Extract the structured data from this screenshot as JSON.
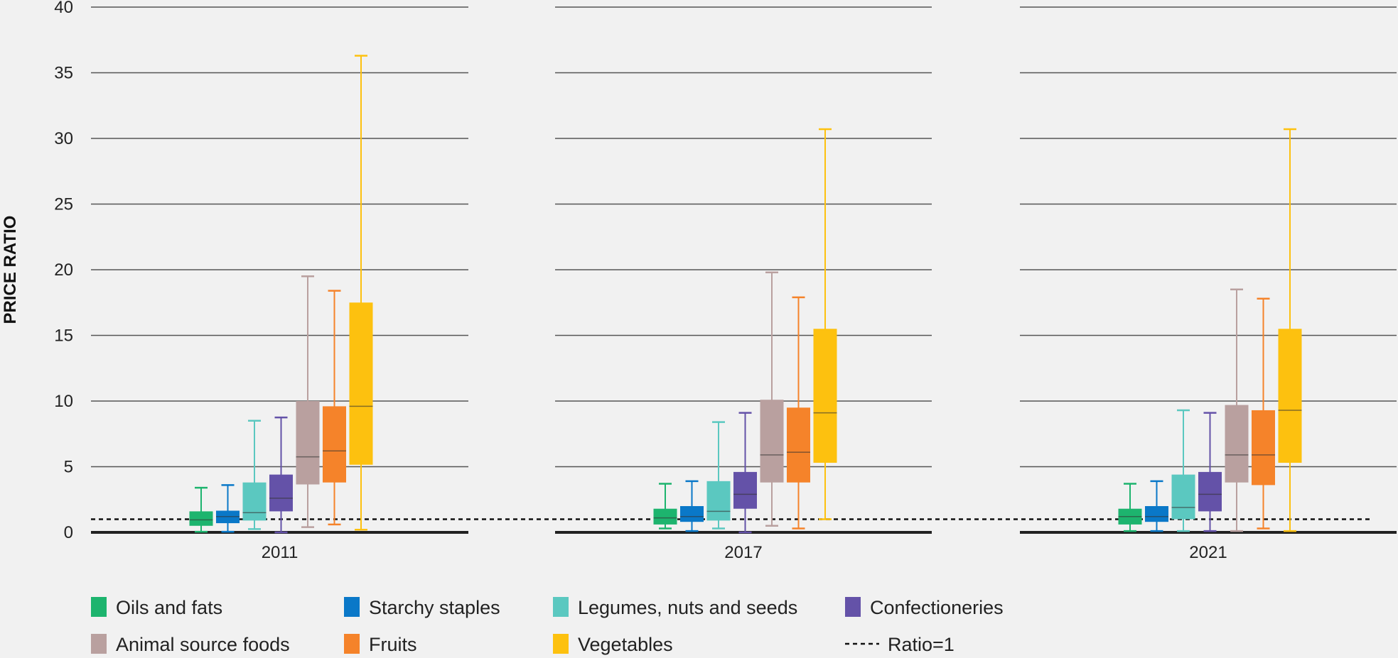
{
  "chart_data": {
    "type": "boxplot",
    "ylabel": "PRICE RATIO",
    "ylim": [
      0,
      40
    ],
    "yticks": [
      0,
      5,
      10,
      15,
      20,
      25,
      30,
      35,
      40
    ],
    "grid": true,
    "reference_line": {
      "value": 1,
      "label": "Ratio=1",
      "style": "dashed"
    },
    "categories": [
      "Oils and fats",
      "Starchy staples",
      "Legumes, nuts and seeds",
      "Confectioneries",
      "Animal source foods",
      "Fruits",
      "Vegetables"
    ],
    "colors": [
      "#1db46e",
      "#0a78c8",
      "#5bc8c0",
      "#6452a8",
      "#b9a09f",
      "#f5832a",
      "#fdc10f"
    ],
    "legend_placement": "bottom",
    "panels": [
      {
        "label": "2011",
        "boxes": [
          {
            "min": 0.05,
            "q1": 0.5,
            "median": 0.95,
            "q3": 1.6,
            "max": 3.4
          },
          {
            "min": 0.05,
            "q1": 0.7,
            "median": 1.2,
            "q3": 1.65,
            "max": 3.6
          },
          {
            "min": 0.25,
            "q1": 0.9,
            "median": 1.5,
            "q3": 3.8,
            "max": 8.5
          },
          {
            "min": 0.0,
            "q1": 1.6,
            "median": 2.6,
            "q3": 4.4,
            "max": 8.75
          },
          {
            "min": 0.4,
            "q1": 3.65,
            "median": 5.75,
            "q3": 10.0,
            "max": 19.5
          },
          {
            "min": 0.6,
            "q1": 3.8,
            "median": 6.2,
            "q3": 9.6,
            "max": 18.4
          },
          {
            "min": 0.2,
            "q1": 5.15,
            "median": 9.6,
            "q3": 17.5,
            "max": 36.3
          }
        ]
      },
      {
        "label": "2017",
        "boxes": [
          {
            "min": 0.3,
            "q1": 0.6,
            "median": 1.1,
            "q3": 1.8,
            "max": 3.7
          },
          {
            "min": 0.1,
            "q1": 0.8,
            "median": 1.2,
            "q3": 2.0,
            "max": 3.9
          },
          {
            "min": 0.3,
            "q1": 0.9,
            "median": 1.6,
            "q3": 3.9,
            "max": 8.4
          },
          {
            "min": 0.0,
            "q1": 1.8,
            "median": 2.9,
            "q3": 4.6,
            "max": 9.1
          },
          {
            "min": 0.5,
            "q1": 3.8,
            "median": 5.9,
            "q3": 10.1,
            "max": 19.8
          },
          {
            "min": 0.3,
            "q1": 3.8,
            "median": 6.1,
            "q3": 9.5,
            "max": 17.9
          },
          {
            "min": 1.0,
            "q1": 5.3,
            "median": 9.1,
            "q3": 15.5,
            "max": 30.7
          }
        ]
      },
      {
        "label": "2021",
        "boxes": [
          {
            "min": 0.1,
            "q1": 0.6,
            "median": 1.2,
            "q3": 1.8,
            "max": 3.7
          },
          {
            "min": 0.1,
            "q1": 0.8,
            "median": 1.2,
            "q3": 2.0,
            "max": 3.9
          },
          {
            "min": 0.1,
            "q1": 1.0,
            "median": 1.9,
            "q3": 4.4,
            "max": 9.3
          },
          {
            "min": 0.1,
            "q1": 1.6,
            "median": 2.9,
            "q3": 4.6,
            "max": 9.1
          },
          {
            "min": 0.1,
            "q1": 3.8,
            "median": 5.9,
            "q3": 9.7,
            "max": 18.5
          },
          {
            "min": 0.3,
            "q1": 3.6,
            "median": 5.9,
            "q3": 9.3,
            "max": 17.8
          },
          {
            "min": 0.1,
            "q1": 5.3,
            "median": 9.3,
            "q3": 15.5,
            "max": 30.7
          }
        ]
      }
    ]
  }
}
